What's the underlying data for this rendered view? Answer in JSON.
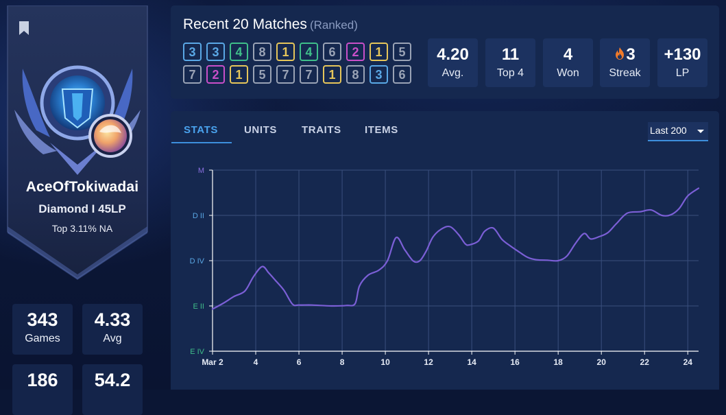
{
  "profile": {
    "summoner_name": "AceOfTokiwadai",
    "rank": "Diamond I 45LP",
    "percentile": "Top 3.11% NA",
    "stats": [
      {
        "value": "343",
        "label": "Games"
      },
      {
        "value": "4.33",
        "label": "Avg"
      },
      {
        "value": "186",
        "label": ""
      },
      {
        "value": "54.2",
        "label": ""
      }
    ]
  },
  "recent": {
    "title": "Recent 20 Matches",
    "subtitle": "(Ranked)",
    "placements": [
      3,
      3,
      4,
      8,
      1,
      4,
      6,
      2,
      1,
      5,
      7,
      2,
      1,
      5,
      7,
      7,
      1,
      8,
      3,
      6
    ],
    "placement_colors": {
      "1": "#e6c65a",
      "2": "#c94fc9",
      "3": "#5aa8e6",
      "4": "#3fbf8a",
      "5": "#9aa3b5",
      "6": "#9aa3b5",
      "7": "#9aa3b5",
      "8": "#9aa3b5"
    },
    "stats": [
      {
        "value": "4.20",
        "label": "Avg."
      },
      {
        "value": "11",
        "label": "Top 4"
      },
      {
        "value": "4",
        "label": "Won"
      },
      {
        "value": "3",
        "label": "Streak",
        "icon": "fire-icon"
      },
      {
        "value": "+130",
        "label": "LP"
      }
    ]
  },
  "graph": {
    "tabs": [
      "STATS",
      "UNITS",
      "TRAITS",
      "ITEMS"
    ],
    "active_tab": "STATS",
    "range_label": "Last 200"
  },
  "chart_data": {
    "type": "line",
    "title": "",
    "xlabel": "",
    "ylabel": "",
    "x_ticks": [
      "Mar 2",
      "4",
      "6",
      "8",
      "10",
      "12",
      "14",
      "16",
      "18",
      "20",
      "22",
      "24"
    ],
    "y_ticks": [
      "E IV",
      "E II",
      "D IV",
      "D II",
      "M"
    ],
    "y_tick_colors": [
      "#3fbf8a",
      "#3fbf8a",
      "#5aa8e6",
      "#5aa8e6",
      "#8a6fe0"
    ],
    "xlim": [
      2,
      24.5
    ],
    "ylim": [
      0,
      4
    ],
    "grid": true,
    "line_color": "#7b5fd6",
    "series": [
      {
        "x": [
          2,
          2.5,
          3,
          3.5,
          3.9,
          4.3,
          4.6,
          4.9,
          5.3,
          5.7,
          6,
          6.6,
          7.5,
          8.2,
          8.6,
          8.8,
          9.2,
          9.7,
          10.1,
          10.5,
          10.9,
          11.3,
          11.6,
          11.9,
          12.2,
          12.6,
          13,
          13.4,
          13.7,
          13.9,
          14.3,
          14.6,
          15,
          15.4,
          15.8,
          16.2,
          16.6,
          17,
          17.5,
          18,
          18.4,
          18.8,
          19.2,
          19.5,
          19.9,
          20.3,
          20.7,
          21.2,
          21.8,
          22.3,
          22.8,
          23.2,
          23.6,
          24,
          24.5
        ],
        "y": [
          0.93,
          1.06,
          1.21,
          1.33,
          1.65,
          1.87,
          1.73,
          1.57,
          1.35,
          1.04,
          1.02,
          1.02,
          1.0,
          1.01,
          1.05,
          1.44,
          1.68,
          1.79,
          2.0,
          2.51,
          2.24,
          1.99,
          2.0,
          2.22,
          2.52,
          2.7,
          2.75,
          2.57,
          2.37,
          2.35,
          2.43,
          2.65,
          2.72,
          2.47,
          2.32,
          2.19,
          2.07,
          2.02,
          2.01,
          2.0,
          2.1,
          2.38,
          2.6,
          2.48,
          2.53,
          2.62,
          2.82,
          3.05,
          3.08,
          3.12,
          3.0,
          3.01,
          3.15,
          3.43,
          3.6
        ]
      }
    ]
  }
}
